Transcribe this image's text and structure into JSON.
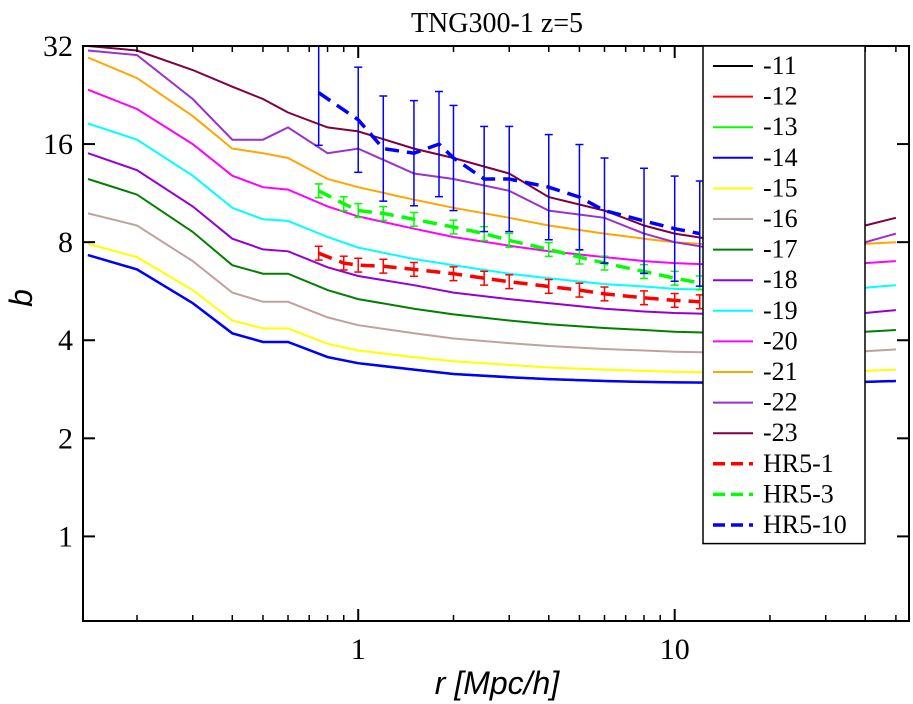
{
  "chart_data": {
    "type": "line",
    "title": "TNG300-1 z=5",
    "xlabel": "r [Mpc/h]",
    "ylabel": "b",
    "xscale": "log",
    "yscale": "log2",
    "xlim": [
      0.135,
      55
    ],
    "ylim": [
      0.55,
      32
    ],
    "x_ticks": [
      1,
      10
    ],
    "x_tick_labels": [
      "1",
      "10"
    ],
    "y_ticks": [
      1,
      2,
      4,
      8,
      16,
      32
    ],
    "y_tick_labels": [
      "1",
      "2",
      "4",
      "8",
      "16",
      "32"
    ],
    "legend_position": "top-right",
    "x": [
      0.14,
      0.2,
      0.3,
      0.4,
      0.5,
      0.6,
      0.8,
      1.0,
      1.5,
      2.0,
      3.0,
      4.0,
      6.0,
      8.0,
      10,
      15,
      20,
      30,
      40,
      50
    ],
    "series": [
      {
        "name": "-11",
        "color": "#000000",
        "style": "solid",
        "values": [
          7.3,
          6.6,
          5.2,
          4.2,
          3.95,
          3.95,
          3.55,
          3.4,
          3.25,
          3.15,
          3.08,
          3.04,
          3.0,
          2.98,
          2.97,
          2.96,
          2.96,
          2.97,
          2.98,
          3.0
        ]
      },
      {
        "name": "-12",
        "color": "#ff0000",
        "style": "solid",
        "values": [
          7.3,
          6.6,
          5.2,
          4.2,
          3.95,
          3.95,
          3.55,
          3.4,
          3.25,
          3.15,
          3.08,
          3.04,
          3.0,
          2.98,
          2.97,
          2.96,
          2.96,
          2.97,
          2.98,
          3.0
        ]
      },
      {
        "name": "-13",
        "color": "#00ff00",
        "style": "solid",
        "values": [
          7.3,
          6.6,
          5.2,
          4.2,
          3.95,
          3.95,
          3.55,
          3.4,
          3.25,
          3.15,
          3.08,
          3.04,
          3.0,
          2.98,
          2.97,
          2.96,
          2.96,
          2.97,
          2.98,
          3.0
        ]
      },
      {
        "name": "-14",
        "color": "#0000ff",
        "style": "solid",
        "values": [
          7.3,
          6.6,
          5.2,
          4.2,
          3.95,
          3.95,
          3.55,
          3.4,
          3.25,
          3.15,
          3.08,
          3.04,
          3.0,
          2.98,
          2.97,
          2.96,
          2.96,
          2.97,
          2.98,
          3.0
        ]
      },
      {
        "name": "-15",
        "color": "#ffff00",
        "style": "solid",
        "values": [
          7.9,
          7.2,
          5.7,
          4.6,
          4.35,
          4.35,
          3.9,
          3.72,
          3.55,
          3.45,
          3.36,
          3.3,
          3.25,
          3.22,
          3.2,
          3.18,
          3.18,
          3.2,
          3.22,
          3.25
        ]
      },
      {
        "name": "-16",
        "color": "#c0a0a0",
        "style": "solid",
        "values": [
          9.8,
          9.0,
          7.0,
          5.6,
          5.25,
          5.25,
          4.7,
          4.45,
          4.2,
          4.05,
          3.92,
          3.84,
          3.76,
          3.72,
          3.69,
          3.66,
          3.65,
          3.67,
          3.7,
          3.75
        ]
      },
      {
        "name": "-17",
        "color": "#008000",
        "style": "solid",
        "values": [
          12.5,
          11.2,
          8.6,
          6.8,
          6.4,
          6.4,
          5.7,
          5.35,
          5.0,
          4.8,
          4.6,
          4.48,
          4.36,
          4.3,
          4.25,
          4.2,
          4.18,
          4.2,
          4.25,
          4.3
        ]
      },
      {
        "name": "-18",
        "color": "#9400d3",
        "style": "solid",
        "values": [
          15.0,
          13.3,
          10.3,
          8.2,
          7.6,
          7.5,
          6.7,
          6.3,
          5.9,
          5.6,
          5.35,
          5.2,
          5.0,
          4.9,
          4.85,
          4.8,
          4.75,
          4.8,
          4.85,
          4.95
        ]
      },
      {
        "name": "-19",
        "color": "#00ffff",
        "style": "solid",
        "values": [
          18.5,
          16.5,
          12.8,
          10.2,
          9.4,
          9.3,
          8.3,
          7.7,
          7.1,
          6.8,
          6.4,
          6.2,
          5.95,
          5.85,
          5.75,
          5.7,
          5.65,
          5.7,
          5.8,
          5.9
        ]
      },
      {
        "name": "-20",
        "color": "#ff00ff",
        "style": "solid",
        "values": [
          23.5,
          20.5,
          16.0,
          12.8,
          11.8,
          11.6,
          10.3,
          9.6,
          8.8,
          8.3,
          7.8,
          7.5,
          7.2,
          7.0,
          6.9,
          6.8,
          6.75,
          6.8,
          6.9,
          7.0
        ]
      },
      {
        "name": "-21",
        "color": "#ffa500",
        "style": "solid",
        "values": [
          29.5,
          25.5,
          19.5,
          15.5,
          15.0,
          14.5,
          12.5,
          11.8,
          10.8,
          10.2,
          9.5,
          9.0,
          8.5,
          8.2,
          8.0,
          7.8,
          7.7,
          7.8,
          7.9,
          8.0
        ]
      },
      {
        "name": "-22",
        "color": "#9932cc",
        "style": "solid",
        "values": [
          31.0,
          30.0,
          22.0,
          16.5,
          16.5,
          18.0,
          15.0,
          15.5,
          13.0,
          12.5,
          11.5,
          10.0,
          9.5,
          8.5,
          8.0,
          7.5,
          7.5,
          7.8,
          8.0,
          8.5
        ]
      },
      {
        "name": "-23",
        "color": "#800040",
        "style": "solid",
        "values": [
          32.0,
          31.0,
          27.0,
          24.0,
          22.0,
          20.0,
          18.0,
          17.5,
          15.5,
          14.5,
          13.0,
          11.0,
          10.0,
          9.0,
          8.5,
          8.0,
          8.0,
          8.5,
          9.0,
          9.5
        ]
      }
    ],
    "dashed_series": [
      {
        "name": "HR5-1",
        "color": "#ff0000",
        "style": "dashed",
        "x": [
          0.75,
          0.9,
          1.0,
          1.2,
          1.5,
          2.0,
          2.5,
          3.0,
          4.0,
          5.0,
          6.0,
          8.0,
          10.0,
          12.0
        ],
        "values": [
          7.4,
          6.9,
          6.8,
          6.75,
          6.6,
          6.4,
          6.2,
          6.05,
          5.85,
          5.7,
          5.55,
          5.4,
          5.3,
          5.25
        ]
      },
      {
        "name": "HR5-3",
        "color": "#00ff00",
        "style": "dashed",
        "x": [
          0.75,
          0.9,
          1.0,
          1.2,
          1.5,
          2.0,
          2.5,
          3.0,
          4.0,
          5.0,
          6.0,
          8.0,
          10.0,
          12.0
        ],
        "values": [
          11.5,
          10.5,
          10.0,
          9.8,
          9.4,
          8.9,
          8.5,
          8.1,
          7.6,
          7.2,
          6.9,
          6.5,
          6.2,
          6.0
        ]
      },
      {
        "name": "HR5-10",
        "color": "#0000ff",
        "style": "dashed",
        "x": [
          0.75,
          1.0,
          1.2,
          1.5,
          1.8,
          2.0,
          2.5,
          3.0,
          4.0,
          5.0,
          6.0,
          8.0,
          10.0,
          12.0
        ],
        "values": [
          23.0,
          19.0,
          15.5,
          15.0,
          16.0,
          14.5,
          12.5,
          12.5,
          11.8,
          11.0,
          10.0,
          9.3,
          8.8,
          8.5
        ]
      }
    ],
    "legend": [
      "-11",
      "-12",
      "-13",
      "-14",
      "-15",
      "-16",
      "-17",
      "-18",
      "-19",
      "-20",
      "-21",
      "-22",
      "-23",
      "HR5-1",
      "HR5-3",
      "HR5-10"
    ]
  }
}
